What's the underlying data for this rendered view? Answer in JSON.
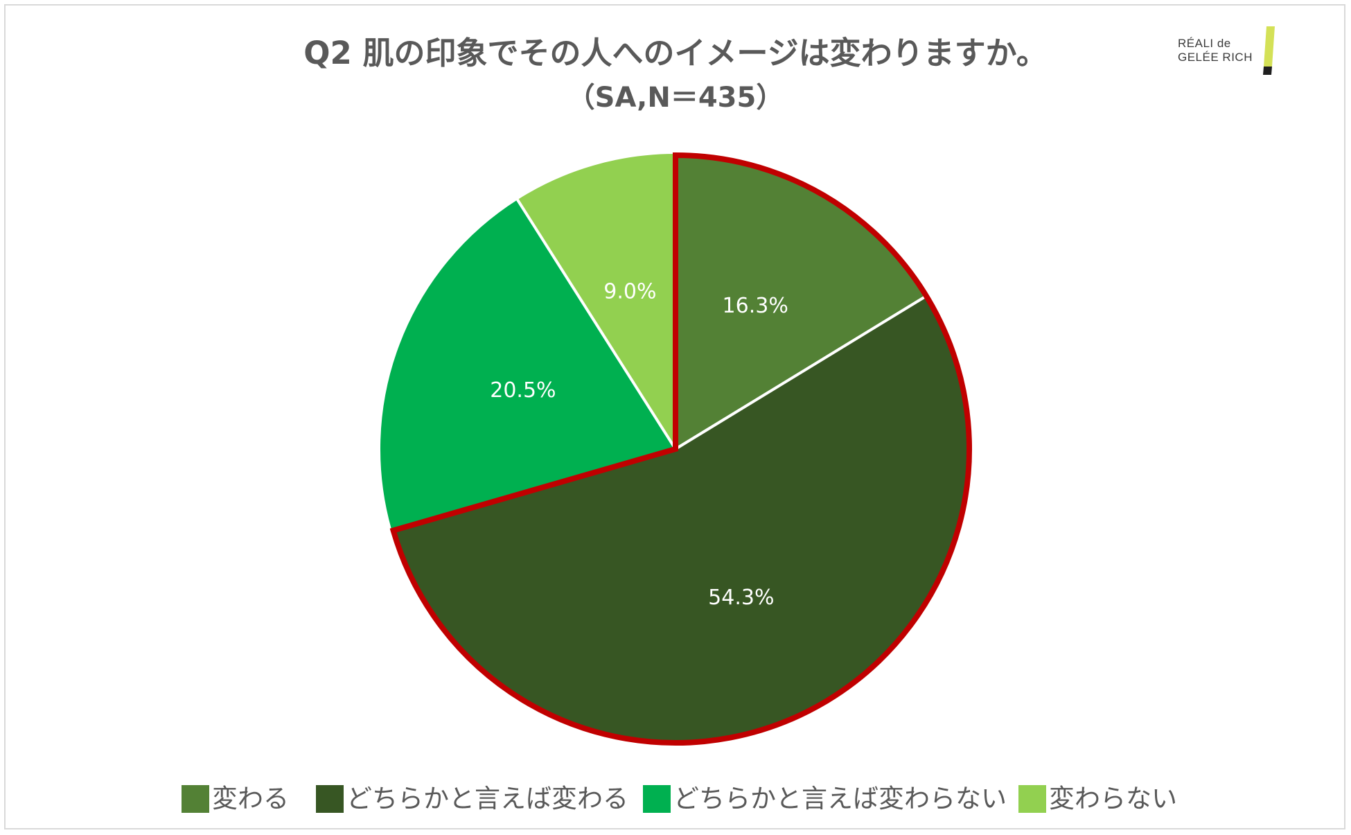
{
  "chart_data": {
    "type": "pie",
    "title": "Q2 肌の印象でその人へのイメージは変わりますか。",
    "subtitle": "（SA,N＝435）",
    "categories": [
      "変わる",
      "どちらかと言えば変わる",
      "どちらかと言えば変わらない",
      "変わらない"
    ],
    "values": [
      16.3,
      54.3,
      20.5,
      9.0
    ],
    "value_labels": [
      "16.3%",
      "54.3%",
      "20.5%",
      "9.0%"
    ],
    "colors": [
      "#538135",
      "#375623",
      "#00B050",
      "#92D050"
    ],
    "highlight": {
      "categories": [
        "変わる",
        "どちらかと言えば変わる"
      ],
      "outline_color": "#C00000"
    },
    "start_angle": "12 o'clock, clockwise",
    "legend_position": "bottom"
  },
  "logo": {
    "line1": "RÉALI de",
    "line2": "GELÉE RICH"
  }
}
